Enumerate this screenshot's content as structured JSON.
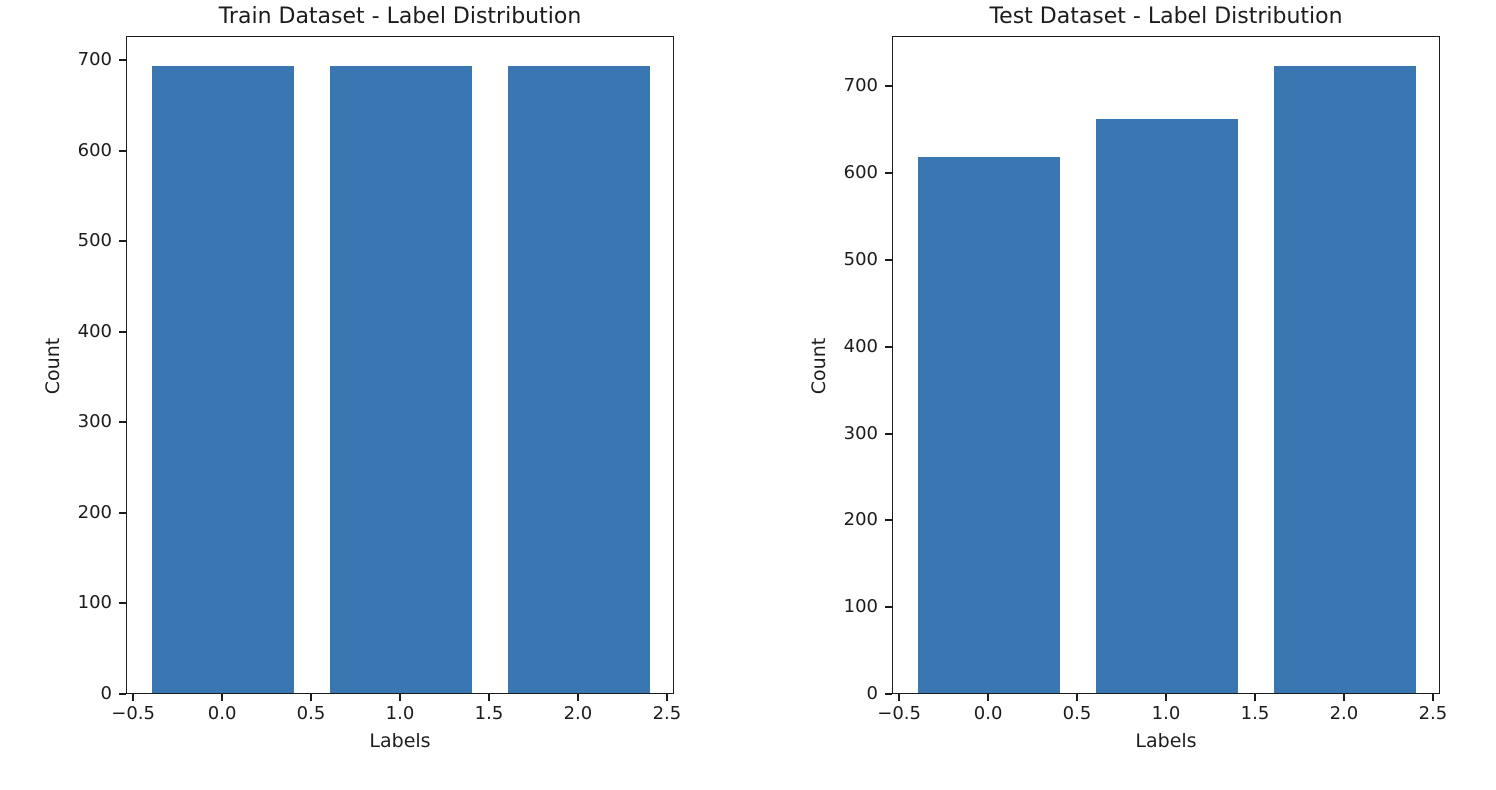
{
  "figure": {
    "background": "#ffffff",
    "text_color": "#1c1c1c"
  },
  "chart_data": [
    {
      "type": "bar",
      "title": "Train Dataset - Label Distribution",
      "xlabel": "Labels",
      "ylabel": "Count",
      "categories": [
        0,
        1,
        2
      ],
      "values": [
        692,
        692,
        692
      ],
      "bar_width": 0.8,
      "bar_color": "#3a76b2",
      "xlim": [
        -0.54,
        2.54
      ],
      "ylim": [
        0,
        726.6
      ],
      "grid": false,
      "legend": null,
      "xticks": {
        "values": [
          -0.5,
          0.0,
          0.5,
          1.0,
          1.5,
          2.0,
          2.5
        ],
        "labels": [
          "−0.5",
          "0.0",
          "0.5",
          "1.0",
          "1.5",
          "2.0",
          "2.5"
        ]
      },
      "yticks": {
        "values": [
          0,
          100,
          200,
          300,
          400,
          500,
          600,
          700
        ],
        "labels": [
          "0",
          "100",
          "200",
          "300",
          "400",
          "500",
          "600",
          "700"
        ]
      }
    },
    {
      "type": "bar",
      "title": "Test Dataset - Label Distribution",
      "xlabel": "Labels",
      "ylabel": "Count",
      "categories": [
        0,
        1,
        2
      ],
      "values": [
        618,
        661,
        722
      ],
      "bar_width": 0.8,
      "bar_color": "#3a76b2",
      "xlim": [
        -0.54,
        2.54
      ],
      "ylim": [
        0,
        758.1
      ],
      "grid": false,
      "legend": null,
      "xticks": {
        "values": [
          -0.5,
          0.0,
          0.5,
          1.0,
          1.5,
          2.0,
          2.5
        ],
        "labels": [
          "−0.5",
          "0.0",
          "0.5",
          "1.0",
          "1.5",
          "2.0",
          "2.5"
        ]
      },
      "yticks": {
        "values": [
          0,
          100,
          200,
          300,
          400,
          500,
          600,
          700
        ],
        "labels": [
          "0",
          "100",
          "200",
          "300",
          "400",
          "500",
          "600",
          "700"
        ]
      }
    }
  ]
}
